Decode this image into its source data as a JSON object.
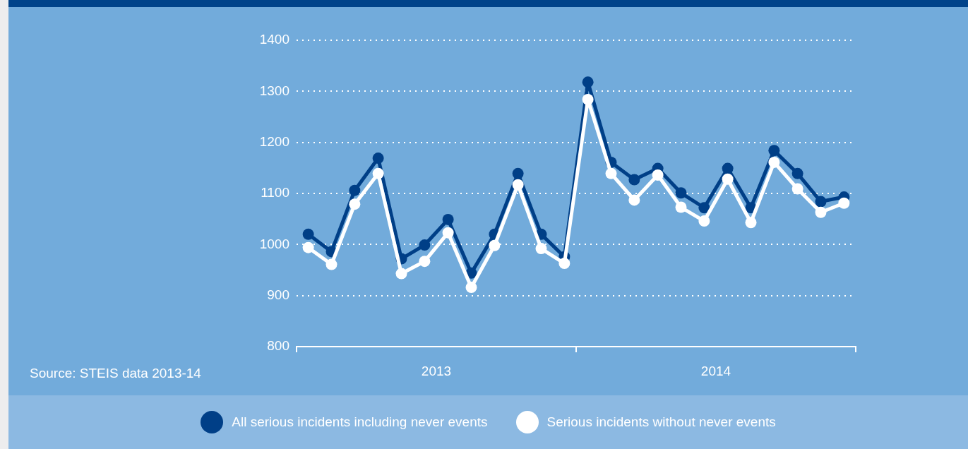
{
  "chart_data": {
    "type": "line",
    "x": [
      2013.042,
      2013.125,
      2013.208,
      2013.292,
      2013.375,
      2013.458,
      2013.542,
      2013.625,
      2013.708,
      2013.792,
      2013.875,
      2013.958,
      2014.042,
      2014.125,
      2014.208,
      2014.292,
      2014.375,
      2014.458,
      2014.542,
      2014.625,
      2014.708,
      2014.792,
      2014.875,
      2014.958
    ],
    "xlim": [
      2013,
      2015
    ],
    "xticks": [
      {
        "value": 2013,
        "label": null
      },
      {
        "value": 2013.5,
        "label": "2013"
      },
      {
        "value": 2014,
        "label": null
      },
      {
        "value": 2014.5,
        "label": "2014"
      },
      {
        "value": 2015,
        "label": null
      }
    ],
    "ylim": [
      800,
      1400
    ],
    "yticks": [
      800,
      900,
      1000,
      1100,
      1200,
      1300,
      1400
    ],
    "series": [
      {
        "name": "All serious incidents including never events",
        "color": "#003f87",
        "values": [
          1020,
          986,
          1106,
          1169,
          972,
          999,
          1049,
          944,
          1020,
          1139,
          1020,
          976,
          1318,
          1161,
          1127,
          1149,
          1101,
          1072,
          1149,
          1072,
          1184,
          1139,
          1084,
          1093
        ]
      },
      {
        "name": "Serious incidents without never events",
        "color": "#ffffff",
        "values": [
          994,
          961,
          1079,
          1139,
          943,
          967,
          1023,
          916,
          998,
          1117,
          992,
          963,
          1284,
          1139,
          1087,
          1136,
          1073,
          1046,
          1128,
          1043,
          1161,
          1109,
          1063,
          1081
        ]
      }
    ],
    "annotations": [
      "Source: STEIS data 2013-14"
    ],
    "grid": "y",
    "legend": "bottom",
    "marker": "circle",
    "line_style": "solid"
  }
}
